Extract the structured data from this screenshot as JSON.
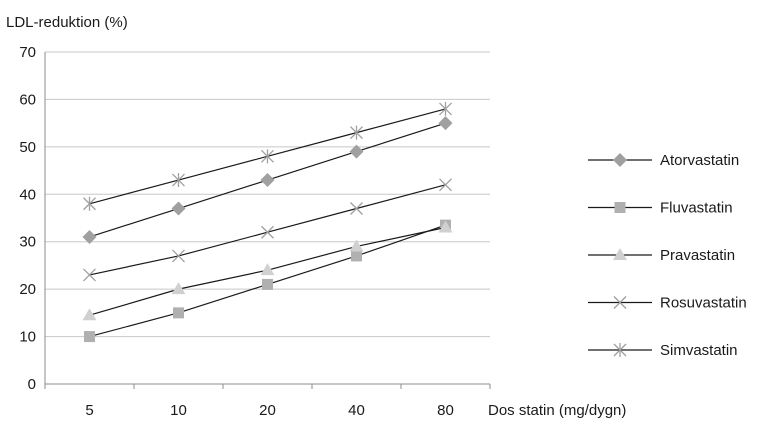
{
  "chart_data": {
    "type": "line",
    "ylabel": "LDL-reduktion (%)",
    "xlabel": "Dos statin (mg/dygn)",
    "categories": [
      "5",
      "10",
      "20",
      "40",
      "80"
    ],
    "yticks": [
      "0",
      "10",
      "20",
      "30",
      "40",
      "50",
      "60",
      "70"
    ],
    "ylim": [
      0,
      70
    ],
    "grid": true,
    "legend_position": "right",
    "series": [
      {
        "name": "Atorvastatin",
        "marker": "diamond",
        "color": "#a0a0a0",
        "values": [
          31,
          37,
          43,
          49,
          55
        ]
      },
      {
        "name": "Fluvastatin",
        "marker": "square",
        "color": "#b0b0b0",
        "values": [
          10,
          15,
          21,
          27,
          33.5
        ]
      },
      {
        "name": "Pravastatin",
        "marker": "triangle",
        "color": "#d0d0d0",
        "values": [
          14.5,
          20,
          24,
          29,
          33
        ]
      },
      {
        "name": "Rosuvastatin",
        "marker": "x",
        "color": "#a0a0a0",
        "values": [
          23,
          27,
          32,
          37,
          42
        ]
      },
      {
        "name": "Simvastatin",
        "marker": "asterisk",
        "color": "#a0a0a0",
        "values": [
          38,
          43,
          48,
          53,
          58
        ]
      }
    ]
  }
}
